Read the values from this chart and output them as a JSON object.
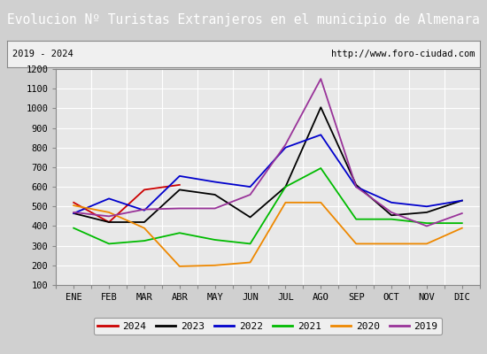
{
  "title": "Evolucion Nº Turistas Extranjeros en el municipio de Almenara",
  "subtitle_left": "2019 - 2024",
  "subtitle_right": "http://www.foro-ciudad.com",
  "months": [
    "ENE",
    "FEB",
    "MAR",
    "ABR",
    "MAY",
    "JUN",
    "JUL",
    "AGO",
    "SEP",
    "OCT",
    "NOV",
    "DIC"
  ],
  "ylim": [
    100,
    1200
  ],
  "yticks": [
    100,
    200,
    300,
    400,
    500,
    600,
    700,
    800,
    900,
    1000,
    1100,
    1200
  ],
  "series": {
    "2024": {
      "color": "#cc0000",
      "values": [
        520,
        420,
        585,
        610,
        null,
        null,
        null,
        null,
        null,
        null,
        null,
        null
      ]
    },
    "2023": {
      "color": "#000000",
      "values": [
        465,
        420,
        420,
        585,
        560,
        445,
        600,
        1005,
        610,
        455,
        470,
        530
      ]
    },
    "2022": {
      "color": "#0000cc",
      "values": [
        465,
        540,
        480,
        655,
        625,
        600,
        800,
        865,
        600,
        520,
        500,
        530
      ]
    },
    "2021": {
      "color": "#00bb00",
      "values": [
        390,
        310,
        325,
        365,
        330,
        310,
        600,
        695,
        435,
        435,
        415,
        415
      ]
    },
    "2020": {
      "color": "#ee8800",
      "values": [
        505,
        470,
        390,
        195,
        200,
        215,
        520,
        520,
        310,
        310,
        310,
        390
      ]
    },
    "2019": {
      "color": "#993399",
      "values": [
        470,
        450,
        485,
        490,
        490,
        560,
        815,
        1150,
        600,
        470,
        400,
        465
      ]
    }
  },
  "legend_order": [
    "2024",
    "2023",
    "2022",
    "2021",
    "2020",
    "2019"
  ],
  "title_bg_color": "#4f86c0",
  "title_text_color": "#ffffff",
  "plot_bg_color": "#e8e8e8",
  "outer_bg_color": "#d0d0d0",
  "border_color": "#888888",
  "grid_color": "#ffffff",
  "subtitle_bg_color": "#f0f0f0",
  "title_fontsize": 10.5,
  "tick_fontsize": 7.5,
  "legend_fontsize": 8.0
}
